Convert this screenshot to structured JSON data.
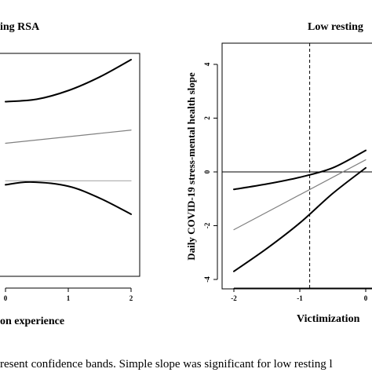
{
  "chart_data": [
    {
      "type": "line",
      "title": "ing RSA",
      "xlabel": "on experience",
      "ylabel": "",
      "x_ticks": [
        0,
        1,
        2
      ],
      "x_tick_labels": [
        "0",
        "1",
        "2"
      ],
      "xlim": [
        0,
        2
      ],
      "series": [
        {
          "role": "upper-band",
          "color": "#000000",
          "points": [
            [
              0,
              2.3
            ],
            [
              0.5,
              2.4
            ],
            [
              1.0,
              2.75
            ],
            [
              1.5,
              3.3
            ],
            [
              2.0,
              4.0
            ]
          ]
        },
        {
          "role": "slope",
          "color": "#808080",
          "points": [
            [
              0,
              0.62
            ],
            [
              2.0,
              1.15
            ]
          ]
        },
        {
          "role": "lower-band",
          "color": "#000000",
          "points": [
            [
              0,
              -1.06
            ],
            [
              0.4,
              -0.95
            ],
            [
              1.0,
              -1.12
            ],
            [
              1.5,
              -1.6
            ],
            [
              2.0,
              -2.25
            ]
          ]
        },
        {
          "role": "zero-line",
          "color": "#b4b4b4",
          "points": [
            [
              0,
              -0.9
            ],
            [
              2.0,
              -0.9
            ]
          ]
        }
      ]
    },
    {
      "type": "line",
      "title": "Low resting",
      "xlabel": "Victimization",
      "ylabel": "Daily COVID-19 stress-mental health slope",
      "x_ticks": [
        -2,
        -1,
        0
      ],
      "x_tick_labels": [
        "-2",
        "-1",
        "0"
      ],
      "y_ticks": [
        -4,
        -2,
        0,
        2,
        4
      ],
      "y_tick_labels": [
        "-4",
        "-2",
        "0",
        "2",
        "4"
      ],
      "ylim": [
        -4,
        4
      ],
      "vline_x": -0.85,
      "hline_y": 0,
      "series": [
        {
          "role": "upper-band",
          "color": "#000000",
          "points": [
            [
              -2,
              -0.65
            ],
            [
              -1.5,
              -0.45
            ],
            [
              -1.0,
              -0.2
            ],
            [
              -0.5,
              0.15
            ],
            [
              0,
              0.8
            ]
          ]
        },
        {
          "role": "slope",
          "color": "#808080",
          "points": [
            [
              -2,
              -2.15
            ],
            [
              0,
              0.45
            ]
          ]
        },
        {
          "role": "lower-band",
          "color": "#000000",
          "points": [
            [
              -2,
              -3.7
            ],
            [
              -1.5,
              -2.85
            ],
            [
              -1.0,
              -1.9
            ],
            [
              -0.5,
              -0.8
            ],
            [
              0,
              0.15
            ]
          ]
        }
      ]
    }
  ],
  "caption": "resent confidence bands. Simple slope was significant for low resting l"
}
